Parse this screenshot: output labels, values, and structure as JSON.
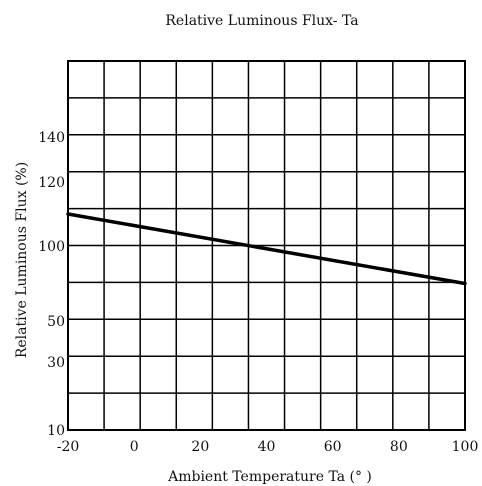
{
  "chart_data": {
    "type": "line",
    "title": "Relative Luminous Flux- Ta",
    "xlabel": "Ambient Temperature Ta (° )",
    "ylabel": "Relative Luminous Flux (%)",
    "xlim": [
      -20,
      100
    ],
    "x_ticks": [
      "-20",
      "0",
      "20",
      "40",
      "60",
      "80",
      "100"
    ],
    "y_ticks": [
      "10",
      "30",
      "50",
      "100",
      "120",
      "140"
    ],
    "grid": true,
    "series": [
      {
        "x": [
          -20,
          100
        ],
        "y": [
          110,
          75
        ]
      }
    ]
  }
}
